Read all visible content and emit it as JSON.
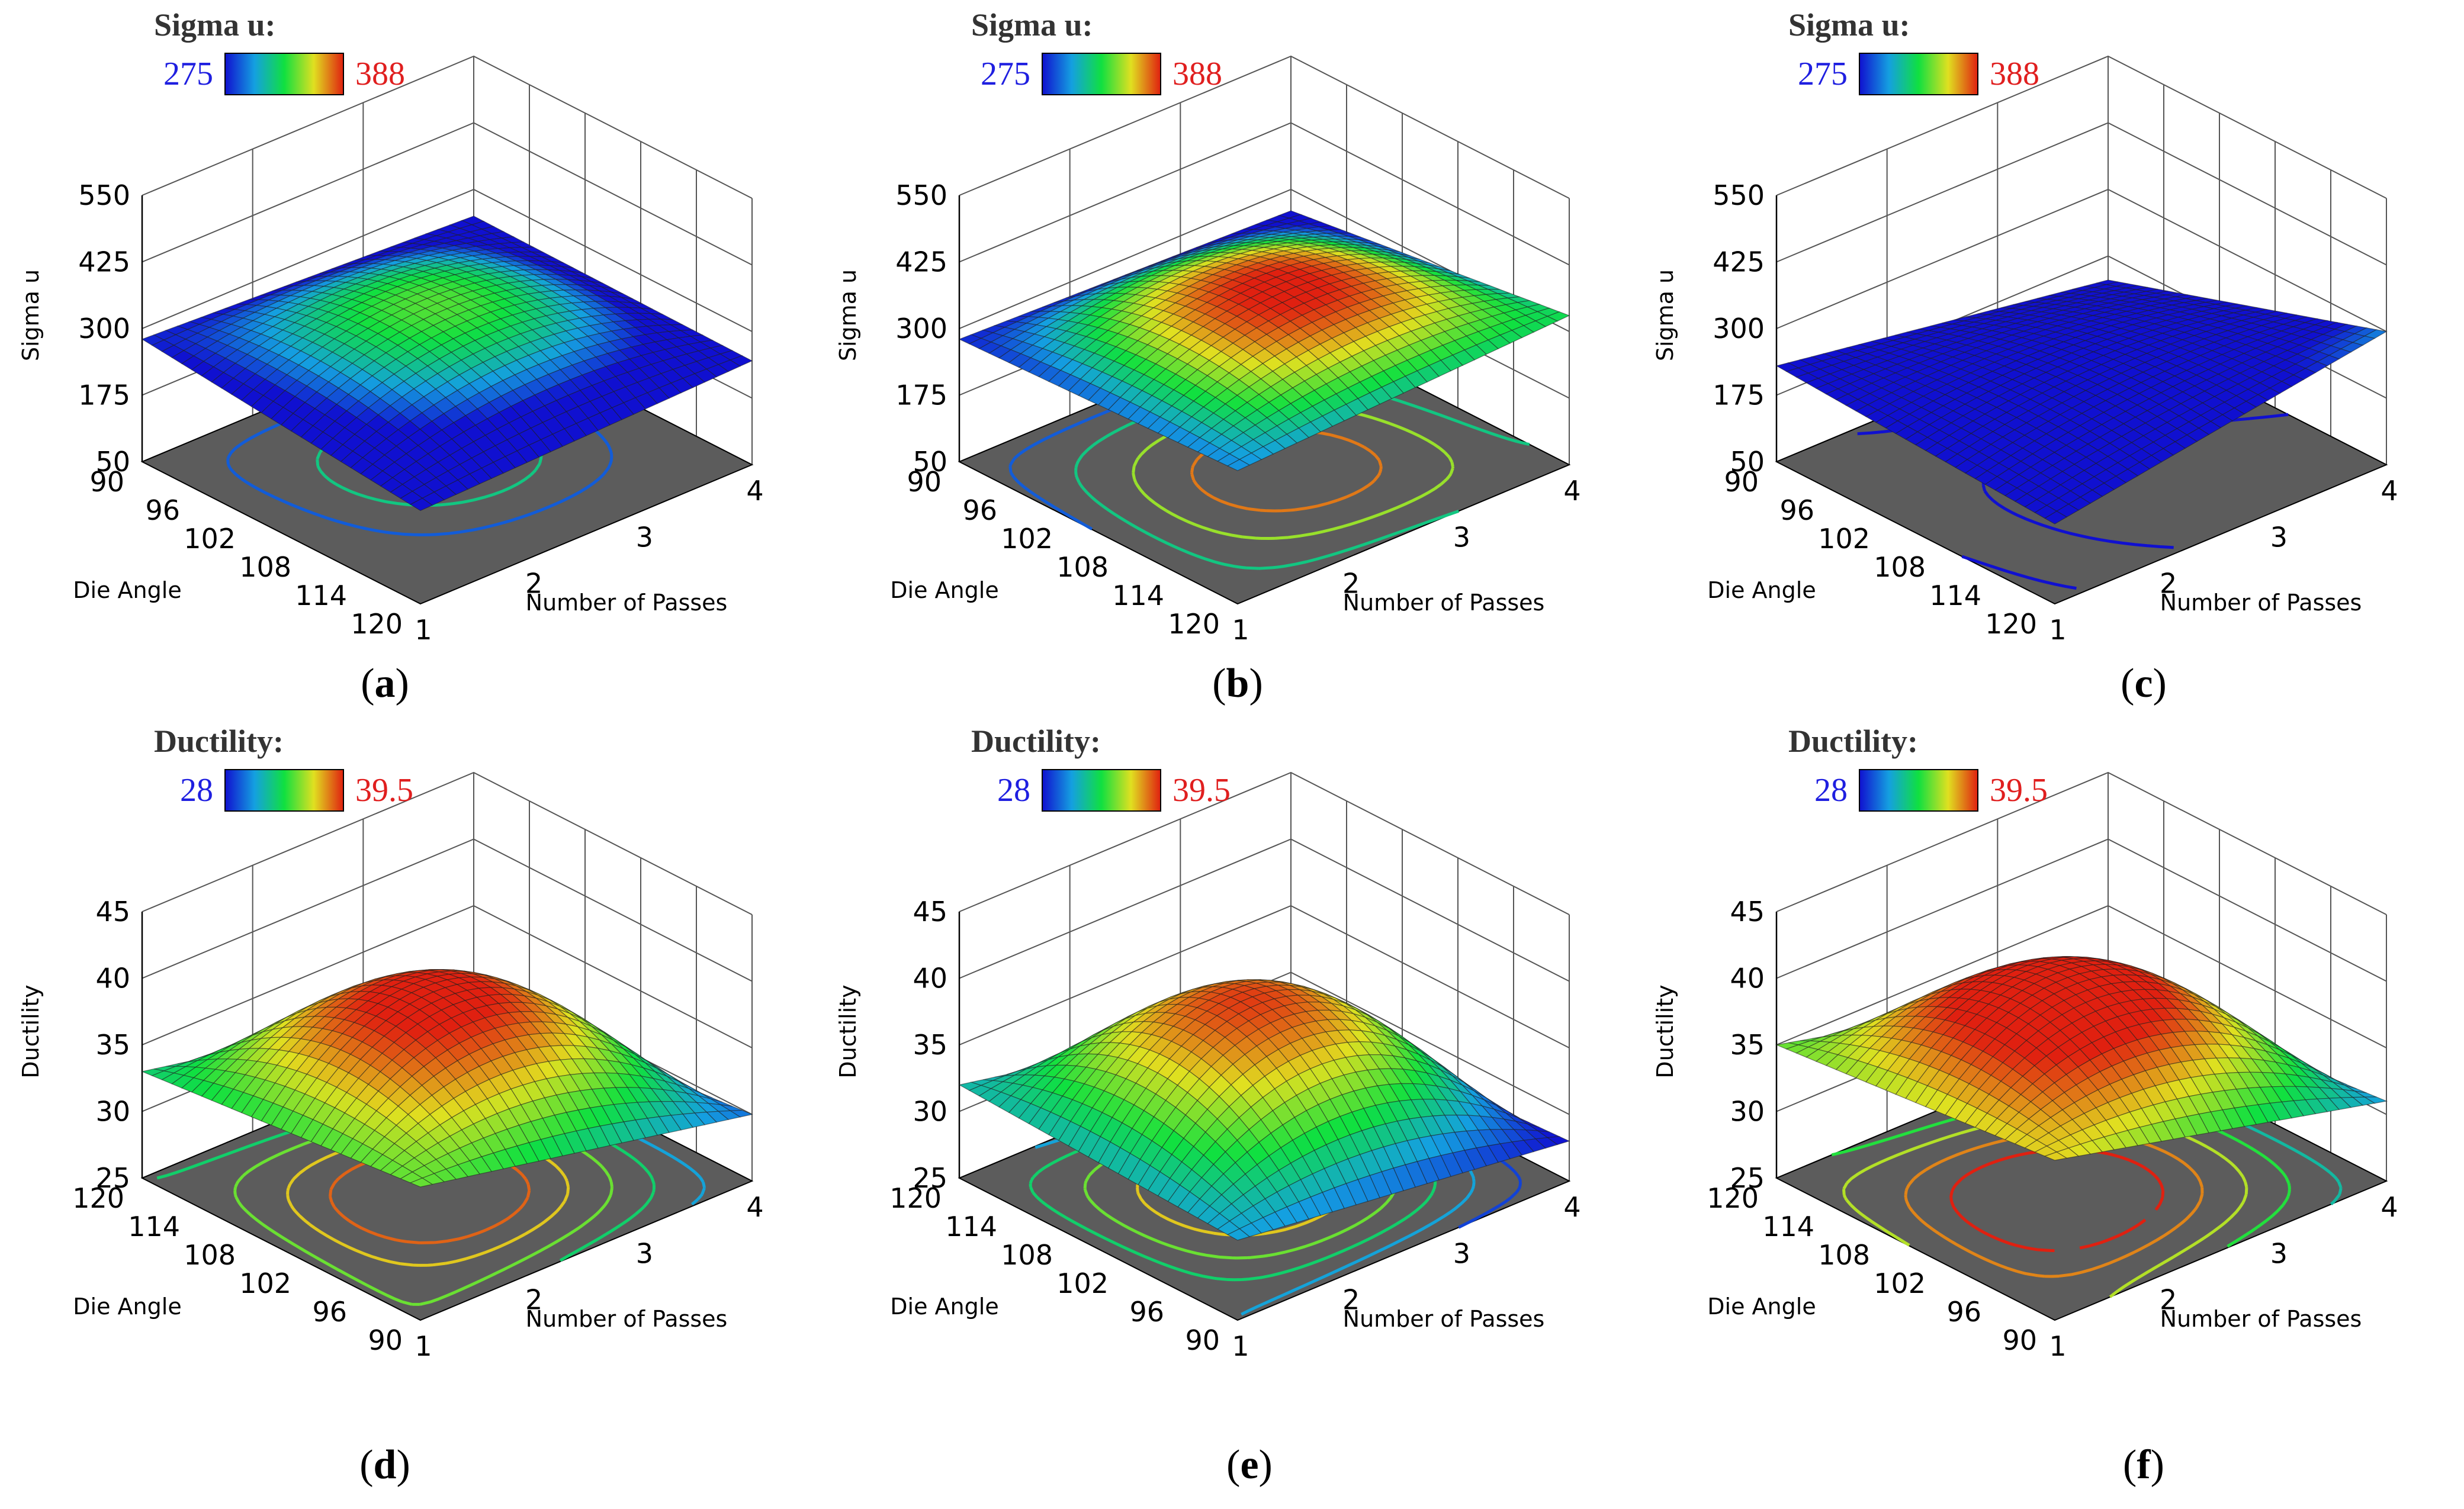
{
  "figure": {
    "colors": {
      "floor": "#5c5c5c",
      "axis_line": "#000000",
      "grid": "#555555",
      "legend_low": "#1f1fe0",
      "legend_high": "#e01f1f",
      "colormap": [
        "#1010d0",
        "#14a0e0",
        "#10e040",
        "#e0e020",
        "#e02010"
      ]
    }
  },
  "chart_data": [
    {
      "id": "a",
      "type": "surface3d",
      "caption": "a",
      "title": "Sigma u:",
      "zlabel": "Sigma u",
      "legend": {
        "min": "275",
        "max": "388"
      },
      "xlabel": "Number of Passes",
      "ylabel": "Die Angle",
      "x_ticks": [
        "1",
        "2",
        "3",
        "4"
      ],
      "y_ticks": [
        "120",
        "114",
        "108",
        "102",
        "96",
        "90"
      ],
      "z_ticks": [
        "50",
        "175",
        "300",
        "425",
        "550"
      ],
      "x_range": [
        1,
        4
      ],
      "y_range": [
        120,
        90
      ],
      "z_range": [
        50,
        550
      ],
      "color_range": [
        275,
        388
      ],
      "corners": {
        "x1_y120": 225,
        "x1_y90": 280,
        "x4_y120": 245,
        "x4_y90": 250,
        "center": 340
      },
      "contour_levels": [
        290,
        320,
        340
      ]
    },
    {
      "id": "b",
      "type": "surface3d",
      "caption": "b",
      "title": "Sigma u:",
      "zlabel": "Sigma u",
      "legend": {
        "min": "275",
        "max": "388"
      },
      "xlabel": "Number of Passes",
      "ylabel": "Die Angle",
      "x_ticks": [
        "1",
        "2",
        "3",
        "4"
      ],
      "y_ticks": [
        "120",
        "114",
        "108",
        "102",
        "96",
        "90"
      ],
      "z_ticks": [
        "50",
        "175",
        "300",
        "425",
        "550"
      ],
      "x_range": [
        1,
        4
      ],
      "y_range": [
        120,
        90
      ],
      "z_range": [
        50,
        550
      ],
      "color_range": [
        275,
        388
      ],
      "corners": {
        "x1_y120": 300,
        "x1_y90": 280,
        "x4_y120": 330,
        "x4_y90": 260,
        "center": 390
      },
      "contour_levels": [
        290,
        320,
        350,
        375
      ]
    },
    {
      "id": "c",
      "type": "surface3d",
      "caption": "c",
      "title": "Sigma u:",
      "zlabel": "Sigma u",
      "legend": {
        "min": "275",
        "max": "388"
      },
      "xlabel": "Number of Passes",
      "ylabel": "Die Angle",
      "x_ticks": [
        "1",
        "2",
        "3",
        "4"
      ],
      "y_ticks": [
        "120",
        "114",
        "108",
        "102",
        "96",
        "90"
      ],
      "z_ticks": [
        "50",
        "175",
        "300",
        "425",
        "550"
      ],
      "x_range": [
        1,
        4
      ],
      "y_range": [
        120,
        90
      ],
      "z_range": [
        50,
        550
      ],
      "color_range": [
        275,
        388
      ],
      "corners": {
        "x1_y120": 200,
        "x1_y90": 230,
        "x4_y120": 300,
        "x4_y90": 130,
        "center": 250
      },
      "contour_levels": [
        150,
        180,
        210,
        240
      ]
    },
    {
      "id": "d",
      "type": "surface3d",
      "caption": "d",
      "title": "Ductility:",
      "zlabel": "Ductility",
      "legend": {
        "min": "28",
        "max": "39.5"
      },
      "xlabel": "Number of Passes",
      "ylabel": "Die Angle",
      "x_ticks": [
        "1",
        "2",
        "3",
        "4"
      ],
      "y_ticks": [
        "90",
        "96",
        "102",
        "108",
        "114",
        "120"
      ],
      "z_ticks": [
        "25",
        "30",
        "35",
        "40",
        "45"
      ],
      "x_range": [
        1,
        4
      ],
      "y_range": [
        90,
        120
      ],
      "z_range": [
        25,
        45
      ],
      "color_range": [
        28,
        39.5
      ],
      "corners": {
        "x1_y90": 35,
        "x1_y120": 33,
        "x4_y90": 30,
        "x4_y120": 28,
        "center": 40
      },
      "contour_levels": [
        31,
        33,
        35,
        37,
        38.5
      ]
    },
    {
      "id": "e",
      "type": "surface3d",
      "caption": "e",
      "title": "Ductility:",
      "zlabel": "Ductility",
      "legend": {
        "min": "28",
        "max": "39.5"
      },
      "xlabel": "Number of Passes",
      "ylabel": "Die Angle",
      "x_ticks": [
        "1",
        "2",
        "3",
        "4"
      ],
      "y_ticks": [
        "90",
        "96",
        "102",
        "108",
        "114",
        "120"
      ],
      "z_ticks": [
        "25",
        "30",
        "35",
        "40",
        "45"
      ],
      "x_range": [
        1,
        4
      ],
      "y_range": [
        90,
        120
      ],
      "z_range": [
        25,
        45
      ],
      "color_range": [
        28,
        39.5
      ],
      "corners": {
        "x1_y90": 31,
        "x1_y120": 32,
        "x4_y90": 28,
        "x4_y120": 27,
        "center": 39
      },
      "contour_levels": [
        29,
        31,
        33,
        35,
        37
      ]
    },
    {
      "id": "f",
      "type": "surface3d",
      "caption": "f",
      "title": "Ductility:",
      "zlabel": "Ductility",
      "legend": {
        "min": "28",
        "max": "39.5"
      },
      "xlabel": "Number of Passes",
      "ylabel": "Die Angle",
      "x_ticks": [
        "1",
        "2",
        "3",
        "4"
      ],
      "y_ticks": [
        "90",
        "96",
        "102",
        "108",
        "114",
        "120"
      ],
      "z_ticks": [
        "25",
        "30",
        "35",
        "40",
        "45"
      ],
      "x_range": [
        1,
        4
      ],
      "y_range": [
        90,
        120
      ],
      "z_range": [
        25,
        45
      ],
      "color_range": [
        28,
        39.5
      ],
      "corners": {
        "x1_y90": 37,
        "x1_y120": 35,
        "x4_y90": 31,
        "x4_y120": 29,
        "center": 41
      },
      "contour_levels": [
        32,
        34,
        36,
        38,
        39.5
      ]
    }
  ]
}
